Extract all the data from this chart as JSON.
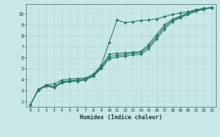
{
  "title": "",
  "xlabel": "Humidex (Indice chaleur)",
  "ylabel": "",
  "bg_color": "#c8e8e8",
  "line_color": "#2e7b6e",
  "grid_color": "#b8d8d0",
  "xlim": [
    -0.5,
    23.5
  ],
  "ylim": [
    1.5,
    10.9
  ],
  "xticks": [
    0,
    1,
    2,
    3,
    4,
    5,
    6,
    7,
    8,
    9,
    10,
    11,
    12,
    13,
    14,
    15,
    16,
    17,
    18,
    19,
    20,
    21,
    22,
    23
  ],
  "yticks": [
    2,
    3,
    4,
    5,
    6,
    7,
    8,
    9,
    10
  ],
  "line1": {
    "x": [
      0,
      1,
      2,
      3,
      4,
      5,
      6,
      7,
      8,
      9,
      10,
      11,
      12,
      13,
      14,
      15,
      16,
      17,
      18,
      19,
      20,
      21,
      22,
      23
    ],
    "y": [
      1.7,
      3.1,
      3.5,
      3.6,
      3.95,
      4.05,
      4.1,
      4.15,
      4.5,
      5.3,
      7.4,
      9.45,
      9.2,
      9.3,
      9.4,
      9.45,
      9.55,
      9.75,
      9.95,
      10.1,
      10.2,
      10.4,
      10.5,
      10.6
    ]
  },
  "line2": {
    "x": [
      0,
      1,
      2,
      3,
      4,
      5,
      6,
      7,
      8,
      9,
      10,
      11,
      12,
      13,
      14,
      15,
      16,
      17,
      18,
      19,
      20,
      21,
      22,
      23
    ],
    "y": [
      1.7,
      3.05,
      3.5,
      3.35,
      3.8,
      3.9,
      3.95,
      4.05,
      4.4,
      5.2,
      6.3,
      6.4,
      6.45,
      6.5,
      6.55,
      7.2,
      8.1,
      9.0,
      9.5,
      9.8,
      10.1,
      10.35,
      10.5,
      10.6
    ]
  },
  "line3": {
    "x": [
      0,
      1,
      2,
      3,
      4,
      5,
      6,
      7,
      8,
      9,
      10,
      11,
      12,
      13,
      14,
      15,
      16,
      17,
      18,
      19,
      20,
      21,
      22,
      23
    ],
    "y": [
      1.7,
      3.05,
      3.45,
      3.3,
      3.75,
      3.85,
      3.9,
      4.0,
      4.35,
      5.1,
      6.1,
      6.2,
      6.3,
      6.4,
      6.45,
      7.0,
      7.9,
      8.8,
      9.4,
      9.75,
      10.05,
      10.3,
      10.47,
      10.58
    ]
  },
  "line4": {
    "x": [
      0,
      1,
      2,
      3,
      4,
      5,
      6,
      7,
      8,
      9,
      10,
      11,
      12,
      13,
      14,
      15,
      16,
      17,
      18,
      19,
      20,
      21,
      22,
      23
    ],
    "y": [
      1.7,
      3.0,
      3.4,
      3.25,
      3.7,
      3.8,
      3.85,
      3.95,
      4.3,
      5.0,
      5.9,
      6.05,
      6.15,
      6.25,
      6.3,
      6.8,
      7.7,
      8.6,
      9.3,
      9.65,
      9.95,
      10.25,
      10.43,
      10.55
    ]
  }
}
